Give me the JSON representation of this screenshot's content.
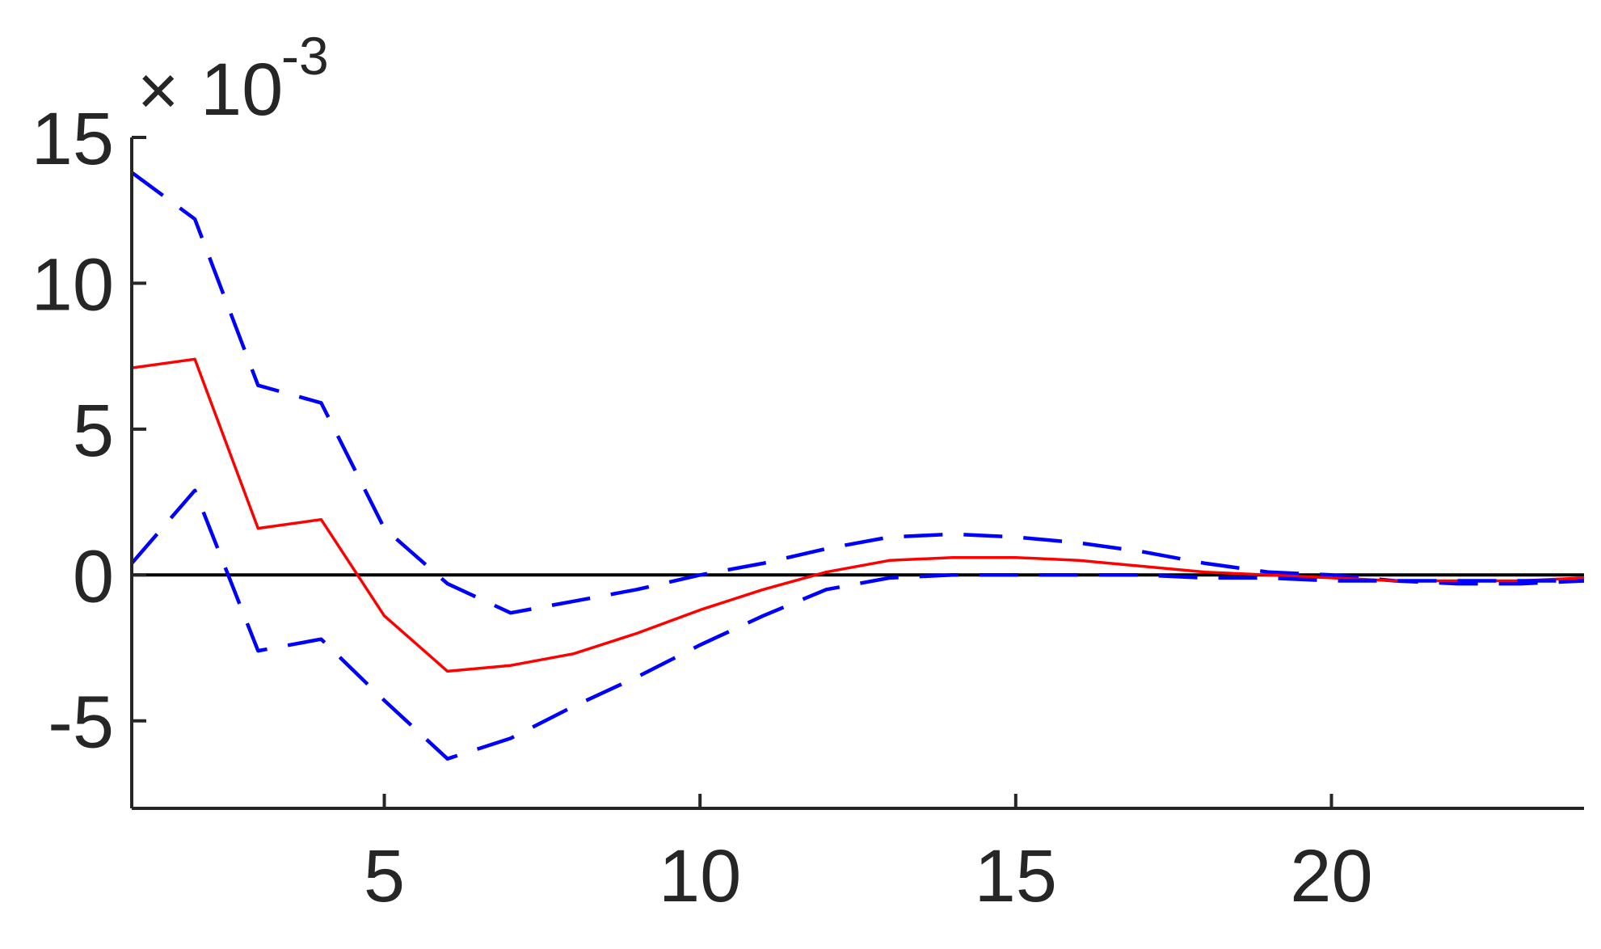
{
  "chart_data": {
    "type": "line",
    "title": "",
    "xlabel": "",
    "ylabel": "",
    "y_multiplier": {
      "times_symbol": "×",
      "base": "10",
      "exponent": "-3"
    },
    "xlim": [
      1,
      24
    ],
    "ylim": [
      -8,
      15
    ],
    "x_ticks": [
      5,
      10,
      15,
      20
    ],
    "x_tick_labels": [
      "5",
      "10",
      "15",
      "20"
    ],
    "y_ticks": [
      -5,
      0,
      5,
      10,
      15
    ],
    "y_tick_labels": [
      "-5",
      "0",
      "5",
      "10",
      "15"
    ],
    "grid": false,
    "legend": "none",
    "x": [
      1,
      2,
      3,
      4,
      5,
      6,
      7,
      8,
      9,
      10,
      11,
      12,
      13,
      14,
      15,
      16,
      17,
      18,
      19,
      20,
      21,
      22,
      23,
      24
    ],
    "series": [
      {
        "role": "upper-band",
        "color": "#0000ff",
        "style": "dashed",
        "values": [
          13.8,
          12.2,
          6.5,
          5.9,
          1.6,
          -0.3,
          -1.3,
          -0.9,
          -0.5,
          0.0,
          0.4,
          0.9,
          1.3,
          1.4,
          1.3,
          1.1,
          0.8,
          0.4,
          0.1,
          0.0,
          -0.2,
          -0.3,
          -0.3,
          -0.2
        ]
      },
      {
        "role": "center",
        "color": "#ff0000",
        "style": "solid",
        "values": [
          7.1,
          7.4,
          1.6,
          1.9,
          -1.4,
          -3.3,
          -3.1,
          -2.7,
          -2.0,
          -1.2,
          -0.5,
          0.1,
          0.5,
          0.6,
          0.6,
          0.5,
          0.3,
          0.1,
          0.0,
          -0.1,
          -0.2,
          -0.2,
          -0.2,
          -0.1
        ]
      },
      {
        "role": "lower-band",
        "color": "#0000ff",
        "style": "dashed",
        "values": [
          0.4,
          2.9,
          -2.6,
          -2.2,
          -4.3,
          -6.3,
          -5.6,
          -4.5,
          -3.5,
          -2.4,
          -1.4,
          -0.5,
          -0.1,
          0.0,
          0.0,
          0.0,
          0.0,
          -0.1,
          -0.1,
          -0.2,
          -0.2,
          -0.2,
          -0.2,
          -0.2
        ]
      }
    ],
    "zero_line": {
      "y": 0,
      "color": "#000000"
    }
  }
}
